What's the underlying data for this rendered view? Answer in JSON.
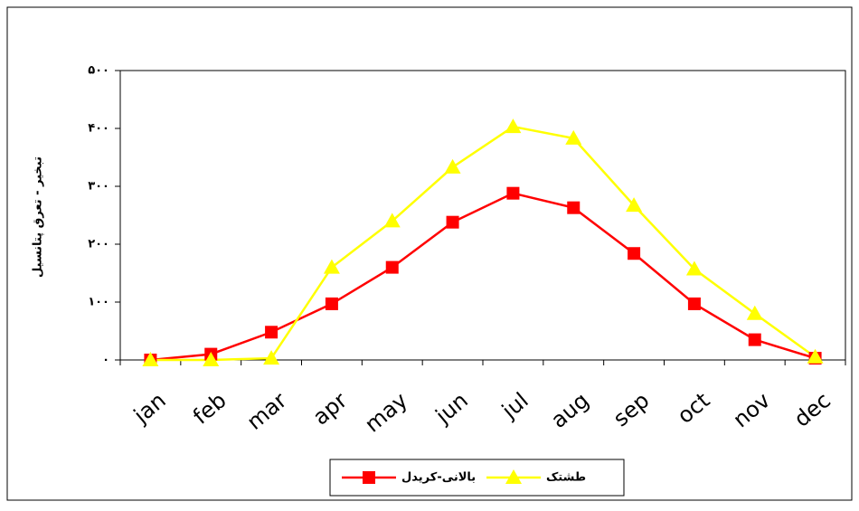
{
  "chart_data": {
    "type": "line",
    "y_label": "تبخیر - تعرق پتانسیل",
    "categories": [
      "jan",
      "feb",
      "mar",
      "apr",
      "may",
      "jun",
      "jul",
      "aug",
      "sep",
      "oct",
      "nov",
      "dec"
    ],
    "series": [
      {
        "name": "بالانی-کریدل",
        "color": "#ff0000",
        "marker": "square",
        "values": [
          0,
          10,
          48,
          97,
          160,
          238,
          288,
          263,
          184,
          97,
          35,
          3
        ]
      },
      {
        "name": "طشتک",
        "color": "#ffff00",
        "marker": "triangle",
        "values": [
          0,
          0,
          3,
          160,
          240,
          333,
          403,
          383,
          267,
          157,
          80,
          5
        ]
      }
    ],
    "ylim": [
      0,
      500
    ],
    "yticks": [
      {
        "value": 0,
        "label": "۰"
      },
      {
        "value": 100,
        "label": "۱۰۰"
      },
      {
        "value": 200,
        "label": "۲۰۰"
      },
      {
        "value": 300,
        "label": "۳۰۰"
      },
      {
        "value": 400,
        "label": "۴۰۰"
      },
      {
        "value": 500,
        "label": "۵۰۰"
      }
    ],
    "grid": false,
    "legend": "bottom"
  }
}
